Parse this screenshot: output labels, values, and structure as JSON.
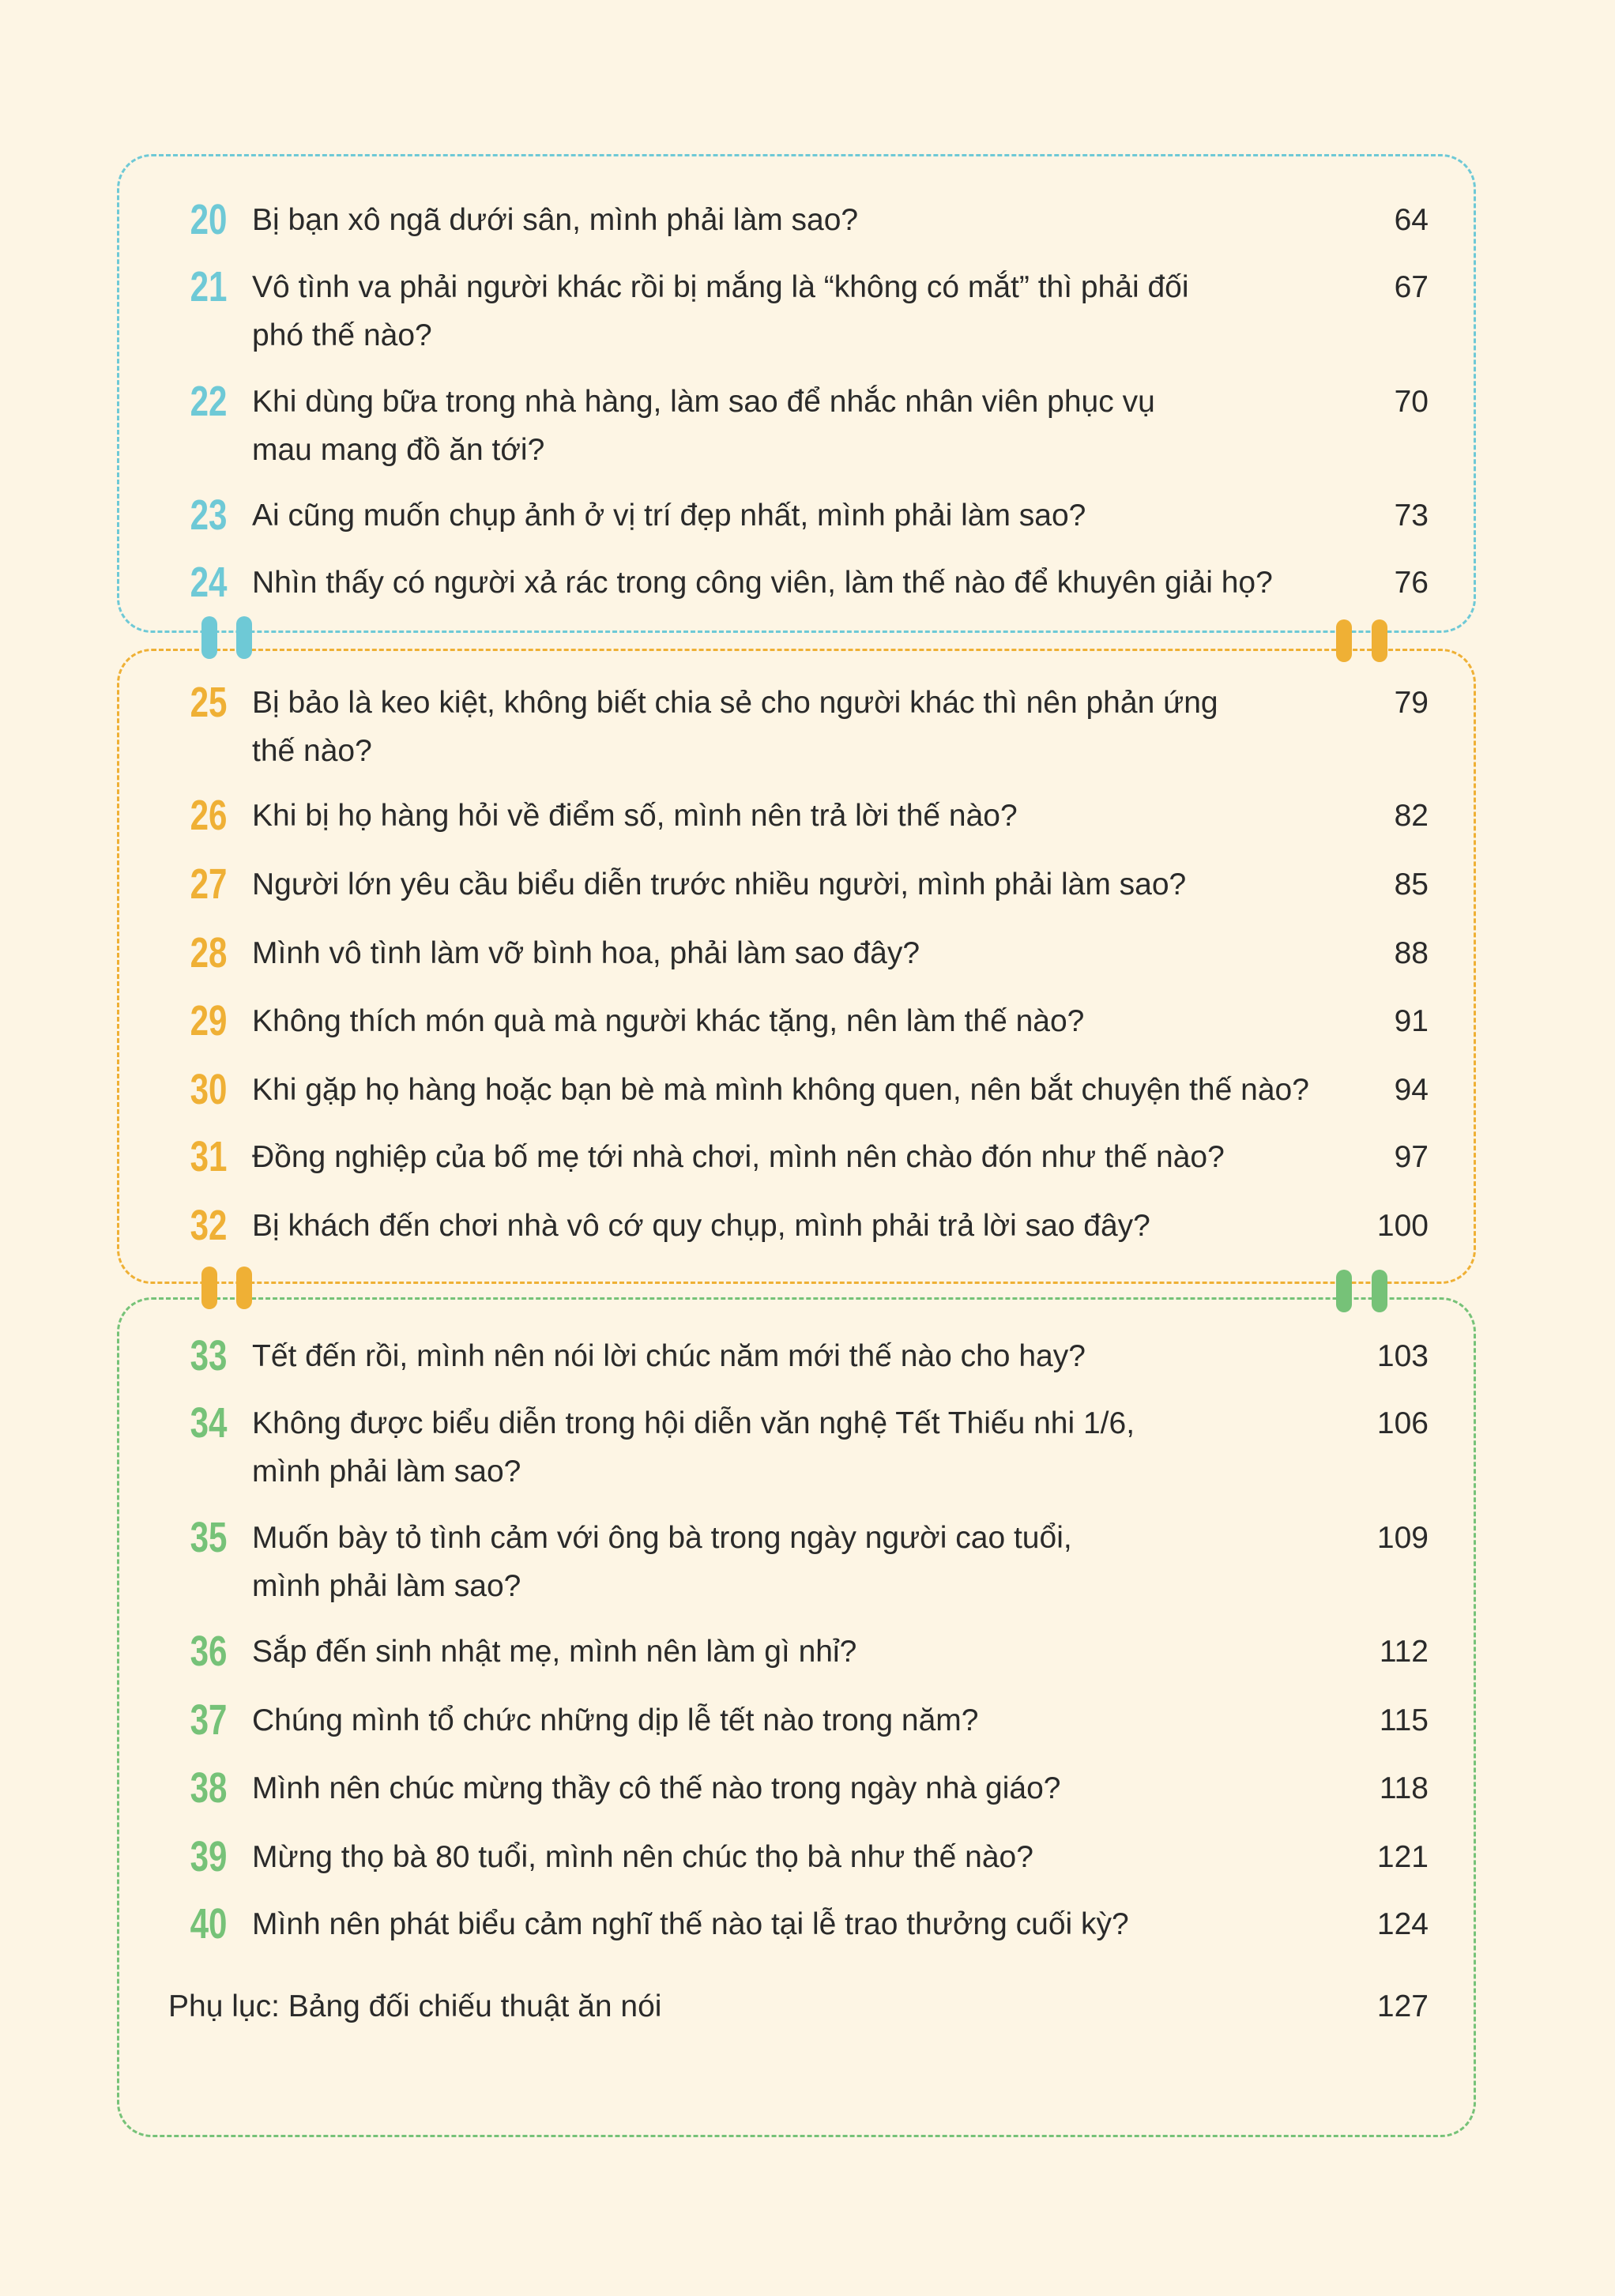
{
  "colors": {
    "blue": "#6ec9d6",
    "orange": "#efb035",
    "green": "#76c278"
  },
  "sections": [
    {
      "color": "blue",
      "items": [
        {
          "num": "20",
          "lines": [
            "Bị bạn xô ngã dưới sân, mình phải làm sao?"
          ],
          "page": "64"
        },
        {
          "num": "21",
          "lines": [
            "Vô tình va phải người khác rồi bị mắng là “không có mắt” thì phải đối",
            "phó thế nào?"
          ],
          "page": "67"
        },
        {
          "num": "22",
          "lines": [
            "Khi dùng bữa trong nhà hàng, làm sao để nhắc nhân viên phục vụ",
            "mau mang đồ ăn tới?"
          ],
          "page": "70"
        },
        {
          "num": "23",
          "lines": [
            "Ai cũng muốn chụp ảnh ở vị trí đẹp nhất, mình phải làm sao?"
          ],
          "page": "73"
        },
        {
          "num": "24",
          "lines": [
            "Nhìn thấy có người xả rác trong công viên, làm thế nào để khuyên giải họ?"
          ],
          "page": "76"
        }
      ]
    },
    {
      "color": "orange",
      "items": [
        {
          "num": "25",
          "lines": [
            "Bị bảo là keo kiệt, không biết chia sẻ cho người khác thì nên phản ứng",
            "thế nào?"
          ],
          "page": "79"
        },
        {
          "num": "26",
          "lines": [
            "Khi bị họ hàng hỏi về điểm số, mình nên trả lời thế nào?"
          ],
          "page": "82"
        },
        {
          "num": "27",
          "lines": [
            "Người lớn yêu cầu biểu diễn trước nhiều người, mình phải làm sao?"
          ],
          "page": "85"
        },
        {
          "num": "28",
          "lines": [
            "Mình vô tình làm vỡ bình hoa, phải làm sao đây?"
          ],
          "page": "88"
        },
        {
          "num": "29",
          "lines": [
            "Không thích món quà mà người khác tặng, nên làm thế nào?"
          ],
          "page": "91"
        },
        {
          "num": "30",
          "lines": [
            "Khi gặp họ hàng hoặc bạn bè mà mình không quen, nên bắt chuyện thế nào?"
          ],
          "page": "94"
        },
        {
          "num": "31",
          "lines": [
            "Đồng nghiệp của bố mẹ tới nhà chơi, mình nên chào đón như thế nào?"
          ],
          "page": "97"
        },
        {
          "num": "32",
          "lines": [
            "Bị khách đến chơi nhà vô cớ quy chụp, mình phải trả lời sao đây?"
          ],
          "page": "100"
        }
      ]
    },
    {
      "color": "green",
      "items": [
        {
          "num": "33",
          "lines": [
            "Tết đến rồi, mình nên nói lời chúc năm mới thế nào cho hay?"
          ],
          "page": "103"
        },
        {
          "num": "34",
          "lines": [
            "Không được biểu diễn trong hội diễn văn nghệ Tết Thiếu nhi 1/6,",
            "mình phải làm sao?"
          ],
          "page": "106"
        },
        {
          "num": "35",
          "lines": [
            "Muốn bày tỏ tình cảm với ông bà trong ngày người cao tuổi,",
            "mình phải làm sao?"
          ],
          "page": "109"
        },
        {
          "num": "36",
          "lines": [
            "Sắp đến sinh nhật mẹ, mình nên làm gì nhỉ?"
          ],
          "page": "112"
        },
        {
          "num": "37",
          "lines": [
            "Chúng mình tổ chức những dịp lễ tết nào trong năm?"
          ],
          "page": "115"
        },
        {
          "num": "38",
          "lines": [
            "Mình nên chúc mừng thầy cô thế nào trong ngày nhà giáo?"
          ],
          "page": "118"
        },
        {
          "num": "39",
          "lines": [
            "Mừng thọ bà 80 tuổi, mình nên chúc thọ bà như thế nào?"
          ],
          "page": "121"
        },
        {
          "num": "40",
          "lines": [
            "Mình nên phát biểu cảm nghĩ thế nào tại lễ trao thưởng cuối kỳ?"
          ],
          "page": "124"
        }
      ]
    }
  ],
  "appendix": {
    "title": "Phụ lục: Bảng đối chiếu thuật ăn nói",
    "page": "127"
  }
}
